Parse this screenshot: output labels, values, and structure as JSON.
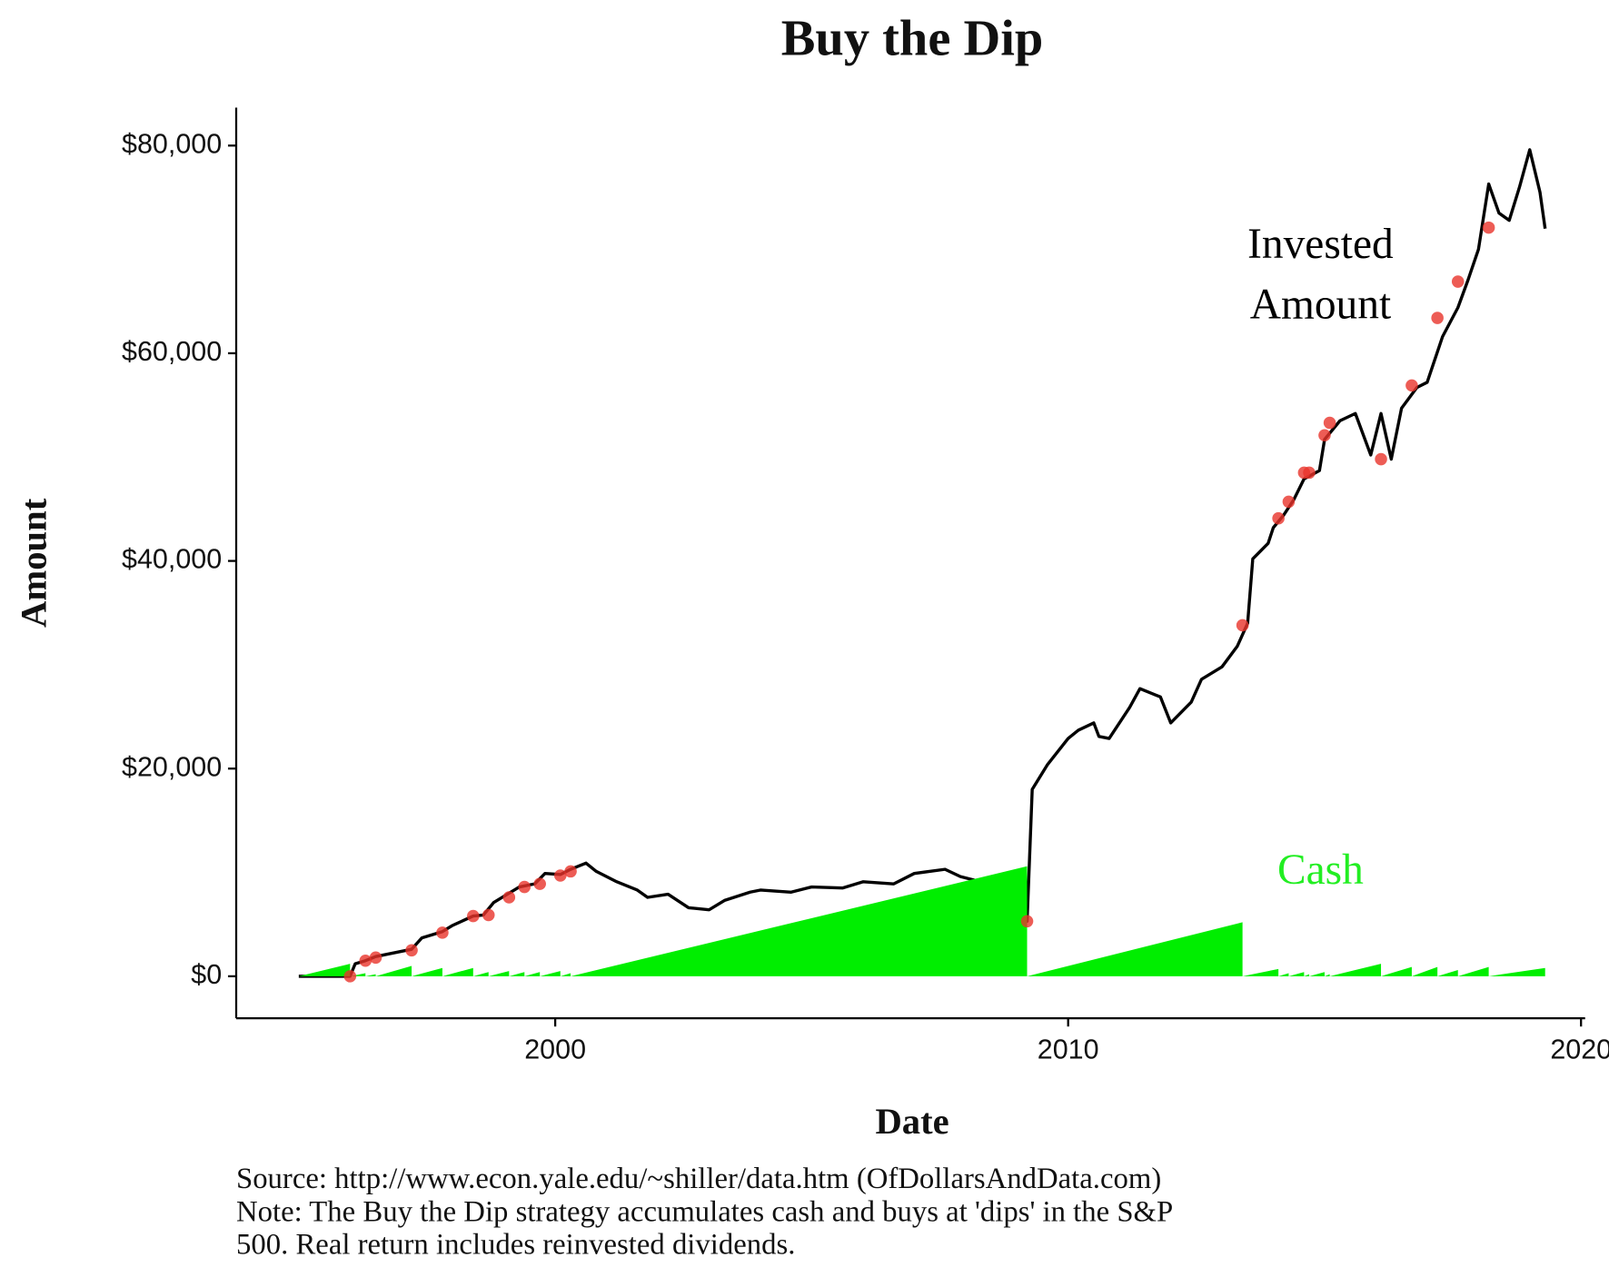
{
  "chart_data": {
    "type": "line",
    "title": "Buy the Dip",
    "x_label": "Date",
    "y_label": "Amount",
    "xlim": [
      1993.78,
      2020.08
    ],
    "xticks": [
      2000,
      2010,
      2020
    ],
    "ylim": [
      -4050,
      83650
    ],
    "yticks": [
      {
        "value": 0,
        "label": "$0"
      },
      {
        "value": 20000,
        "label": "$20,000"
      },
      {
        "value": 40000,
        "label": "$40,000"
      },
      {
        "value": 60000,
        "label": "$60,000"
      },
      {
        "value": 80000,
        "label": "$80,000"
      }
    ],
    "series": [
      {
        "kind": "line",
        "color": "#000000",
        "x": [
          1995.0,
          1996.0,
          1996.1,
          1996.3,
          1996.5,
          1997.0,
          1997.2,
          1997.4,
          1997.8,
          1998.0,
          1998.4,
          1998.6,
          1998.8,
          1999.0,
          1999.3,
          1999.6,
          1999.8,
          2000.1,
          2000.3,
          2000.6,
          2000.8,
          2001.2,
          2001.6,
          2001.8,
          2002.2,
          2002.6,
          2003.0,
          2003.3,
          2003.8,
          2004.0,
          2004.6,
          2005.0,
          2005.6,
          2006.0,
          2006.6,
          2007.0,
          2007.6,
          2007.9,
          2008.3,
          2008.7,
          2008.9,
          2009.2,
          2009.3,
          2009.6,
          2010.0,
          2010.2,
          2010.5,
          2010.6,
          2010.8,
          2011.2,
          2011.4,
          2011.8,
          2012.0,
          2012.4,
          2012.6,
          2013.0,
          2013.3,
          2013.5,
          2013.6,
          2013.9,
          2014.0,
          2014.2,
          2014.4,
          2014.6,
          2014.9,
          2015.0,
          2015.3,
          2015.6,
          2015.9,
          2016.1,
          2016.3,
          2016.5,
          2016.8,
          2017.0,
          2017.3,
          2017.6,
          2017.8,
          2018.0,
          2018.2,
          2018.4,
          2018.6,
          2018.8,
          2019.0,
          2019.2,
          2019.3
        ],
        "values": [
          0,
          0,
          1200,
          1500,
          1900,
          2400,
          2600,
          3700,
          4300,
          4900,
          5800,
          5900,
          7100,
          7700,
          8600,
          8900,
          9900,
          9800,
          10300,
          10900,
          10100,
          9100,
          8300,
          7600,
          7900,
          6600,
          6400,
          7300,
          8100,
          8300,
          8100,
          8600,
          8500,
          9100,
          8900,
          9900,
          10300,
          9600,
          9100,
          7600,
          6300,
          5300,
          18000,
          20400,
          22900,
          23700,
          24400,
          23100,
          22900,
          25900,
          27700,
          26900,
          24400,
          26400,
          28600,
          29800,
          31800,
          34000,
          40200,
          41700,
          43200,
          44400,
          45900,
          47900,
          48700,
          51700,
          53500,
          54200,
          50200,
          54200,
          49800,
          54700,
          56700,
          57200,
          61600,
          64400,
          67100,
          70000,
          76300,
          73500,
          72800,
          76000,
          79600,
          75500,
          72000
        ]
      },
      {
        "kind": "area",
        "color": "#00ee00",
        "x": [
          1995.0,
          1996.0,
          1996.0,
          1996.3,
          1996.3,
          1996.5,
          1996.5,
          1997.2,
          1997.2,
          1997.8,
          1997.8,
          1998.4,
          1998.4,
          1998.7,
          1998.7,
          1999.1,
          1999.1,
          1999.4,
          1999.4,
          1999.7,
          1999.7,
          2000.1,
          2000.1,
          2000.3,
          2000.3,
          2009.2,
          2009.2,
          2013.4,
          2013.4,
          2014.1,
          2014.1,
          2014.3,
          2014.3,
          2014.6,
          2014.6,
          2014.7,
          2014.7,
          2015.0,
          2015.0,
          2015.1,
          2015.1,
          2016.1,
          2016.1,
          2016.7,
          2016.7,
          2017.2,
          2017.2,
          2017.6,
          2017.6,
          2018.2,
          2018.2,
          2019.3,
          2019.3
        ],
        "values": [
          0,
          1200,
          0,
          300,
          0,
          200,
          0,
          1000,
          0,
          800,
          0,
          800,
          0,
          400,
          0,
          500,
          0,
          400,
          0,
          400,
          0,
          500,
          0,
          300,
          0,
          10600,
          0,
          5200,
          0,
          700,
          0,
          300,
          0,
          400,
          0,
          200,
          0,
          400,
          0,
          200,
          0,
          1200,
          0,
          900,
          0,
          900,
          0,
          600,
          0,
          900,
          0,
          800,
          0
        ]
      },
      {
        "kind": "points",
        "color": "#e8332a",
        "x": [
          1996.0,
          1996.3,
          1996.5,
          1997.2,
          1997.8,
          1998.4,
          1998.7,
          1999.1,
          1999.4,
          1999.7,
          2000.1,
          2000.3,
          2009.2,
          2013.4,
          2014.1,
          2014.3,
          2014.6,
          2014.7,
          2015.0,
          2015.1,
          2016.1,
          2016.7,
          2017.2,
          2017.6,
          2018.2
        ],
        "values": [
          0,
          1500,
          1800,
          2500,
          4200,
          5800,
          5900,
          7600,
          8600,
          8900,
          9700,
          10100,
          5300,
          33800,
          44100,
          45700,
          48500,
          48500,
          52100,
          53300,
          49800,
          56900,
          63400,
          66900,
          72100
        ]
      }
    ],
    "annotations": [
      {
        "lines": [
          "Invested",
          "Amount"
        ],
        "color": "#000000"
      },
      {
        "lines": [
          "Cash"
        ],
        "color": "#22ee22"
      }
    ],
    "footnotes": [
      "Source:  http://www.econ.yale.edu/~shiller/data.htm (OfDollarsAndData.com)",
      "Note: The Buy the Dip strategy accumulates cash and buys at 'dips' in the S&P",
      "500. Real return includes reinvested dividends."
    ]
  }
}
